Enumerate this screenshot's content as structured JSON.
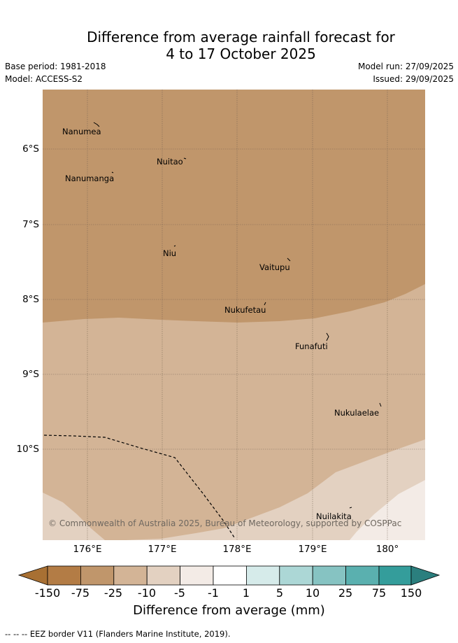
{
  "title": {
    "line1": "Difference from average rainfall forecast for",
    "line2": "4 to 17 October 2025"
  },
  "meta": {
    "base_period": "Base period: 1981-2018",
    "model": "Model: ACCESS-S2",
    "model_run": "Model run: 27/09/2025",
    "issued": "Issued: 29/09/2025"
  },
  "map": {
    "latitude_labels": [
      "6°S",
      "7°S",
      "8°S",
      "9°S",
      "10°S"
    ],
    "longitude_labels": [
      "176°E",
      "177°E",
      "178°E",
      "179°E",
      "180°"
    ],
    "places": [
      {
        "name": "Nanumea"
      },
      {
        "name": "Nuitao"
      },
      {
        "name": "Nanumanga"
      },
      {
        "name": "Niu"
      },
      {
        "name": "Vaitupu"
      },
      {
        "name": "Nukufetau"
      },
      {
        "name": "Funafuti"
      },
      {
        "name": "Nukulaelae"
      },
      {
        "name": "Nuilakita"
      }
    ],
    "copyright": "© Commonwealth of Australia 2025, Bureau of Meteorology, supported by COSPPac"
  },
  "colorbar": {
    "ticks": [
      "-150",
      "-75",
      "-25",
      "-10",
      "-5",
      "-1",
      "1",
      "5",
      "10",
      "25",
      "75",
      "150"
    ],
    "colors": [
      "#a87033",
      "#b37c45",
      "#c0966b",
      "#d3b496",
      "#e3d1c1",
      "#f3ebe6",
      "#ffffff",
      "#d6ebea",
      "#acd7d6",
      "#86c3c2",
      "#5ab0af",
      "#349d9b",
      "#2b7f7e"
    ],
    "title": "Difference from average (mm)"
  },
  "footnote": "--  --  -- EEZ border V11 (Flanders Marine Institute, 2019)."
}
